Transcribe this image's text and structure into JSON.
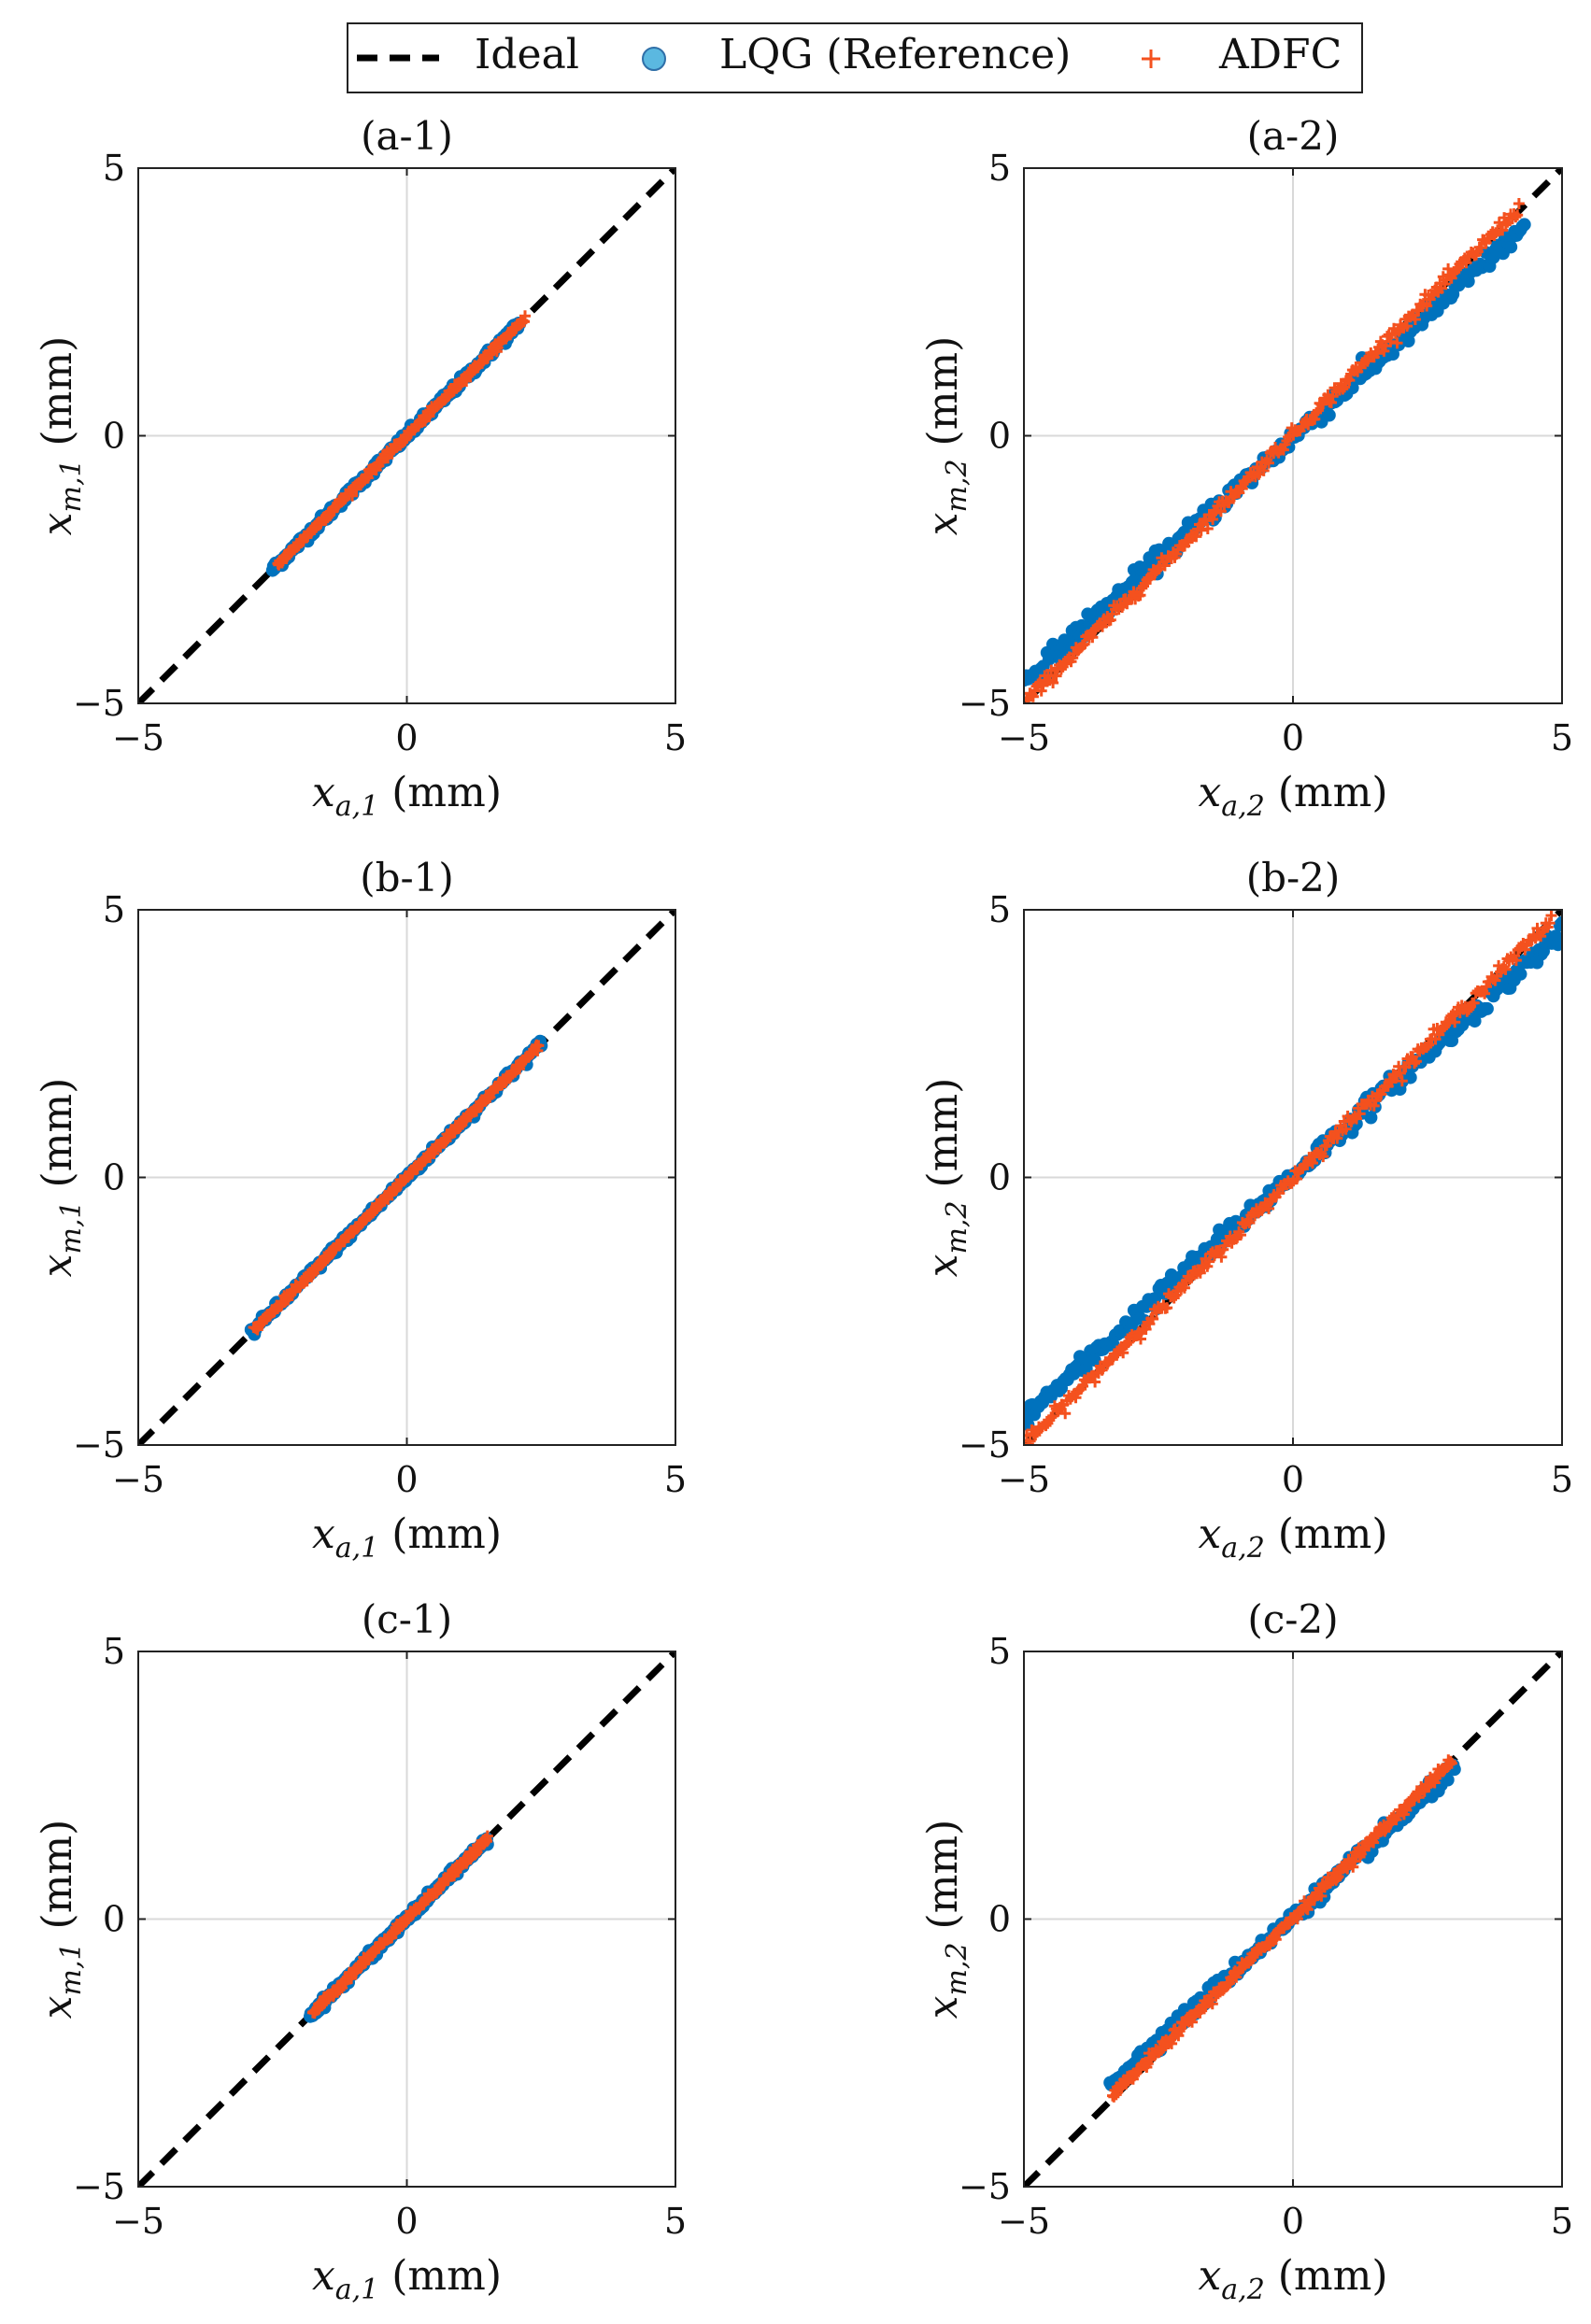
{
  "colors": {
    "ideal": "#000000",
    "lqg": "#0072BD",
    "lqg_marker_fill": "#5BB8E0",
    "adfc": "#F4511E",
    "grid": "#d9d9d9",
    "axes": "#222222"
  },
  "legend": {
    "entries": [
      {
        "label": "Ideal",
        "series": "ideal"
      },
      {
        "label": "LQG (Reference)",
        "series": "lqg"
      },
      {
        "label": "ADFC",
        "series": "adfc"
      }
    ]
  },
  "chart_data": [
    {
      "type": "scatter",
      "title": "(a-1)",
      "xlabel": "x_{a,1} (mm)",
      "ylabel": "x_{m,1} (mm)",
      "xlabel_parts": {
        "base": "x",
        "sub": "a,1",
        "unit": "(mm)"
      },
      "ylabel_parts": {
        "base": "x",
        "sub": "m,1",
        "unit": "(mm)"
      },
      "xlim": [
        -5,
        5
      ],
      "ylim": [
        -5,
        5
      ],
      "xticks": [
        -5,
        0,
        5
      ],
      "yticks": [
        -5,
        0,
        5
      ],
      "tick_labels": [
        "−5",
        "0",
        "5"
      ],
      "grid": true,
      "series": [
        {
          "name": "Ideal",
          "style": "dashed-line",
          "x": [
            -5,
            5
          ],
          "y": [
            -5,
            5
          ]
        },
        {
          "name": "LQG (Reference)",
          "style": "circle",
          "x": [
            -2.5,
            2.1
          ],
          "y": [
            -2.5,
            2.1
          ],
          "spread": 0.08
        },
        {
          "name": "ADFC",
          "style": "plus",
          "x": [
            -2.4,
            2.2
          ],
          "y": [
            -2.4,
            2.2
          ],
          "spread": 0.05
        }
      ]
    },
    {
      "type": "scatter",
      "title": "(a-2)",
      "xlabel": "x_{a,2} (mm)",
      "ylabel": "x_{m,2} (mm)",
      "xlabel_parts": {
        "base": "x",
        "sub": "a,2",
        "unit": "(mm)"
      },
      "ylabel_parts": {
        "base": "x",
        "sub": "m,2",
        "unit": "(mm)"
      },
      "xlim": [
        -5,
        5
      ],
      "ylim": [
        -5,
        5
      ],
      "xticks": [
        -5,
        0,
        5
      ],
      "yticks": [
        -5,
        0,
        5
      ],
      "tick_labels": [
        "−5",
        "0",
        "5"
      ],
      "grid": true,
      "series": [
        {
          "name": "Ideal",
          "style": "dashed-line",
          "x": [
            -5,
            5
          ],
          "y": [
            -5,
            5
          ]
        },
        {
          "name": "LQG (Reference)",
          "style": "circle",
          "x": [
            -5.0,
            4.3
          ],
          "y": [
            -4.6,
            3.9
          ],
          "spread": 0.16
        },
        {
          "name": "ADFC",
          "style": "plus",
          "x": [
            -4.95,
            4.2
          ],
          "y": [
            -4.95,
            4.25
          ],
          "spread": 0.1
        }
      ]
    },
    {
      "type": "scatter",
      "title": "(b-1)",
      "xlabel": "x_{a,1} (mm)",
      "ylabel": "x_{m,1} (mm)",
      "xlabel_parts": {
        "base": "x",
        "sub": "a,1",
        "unit": "(mm)"
      },
      "ylabel_parts": {
        "base": "x",
        "sub": "m,1",
        "unit": "(mm)"
      },
      "xlim": [
        -5,
        5
      ],
      "ylim": [
        -5,
        5
      ],
      "xticks": [
        -5,
        0,
        5
      ],
      "yticks": [
        -5,
        0,
        5
      ],
      "tick_labels": [
        "−5",
        "0",
        "5"
      ],
      "grid": true,
      "series": [
        {
          "name": "Ideal",
          "style": "dashed-line",
          "x": [
            -5,
            5
          ],
          "y": [
            -5,
            5
          ]
        },
        {
          "name": "LQG (Reference)",
          "style": "circle",
          "x": [
            -2.9,
            2.5
          ],
          "y": [
            -2.9,
            2.5
          ],
          "spread": 0.07
        },
        {
          "name": "ADFC",
          "style": "plus",
          "x": [
            -2.85,
            2.45
          ],
          "y": [
            -2.85,
            2.45
          ],
          "spread": 0.05
        }
      ]
    },
    {
      "type": "scatter",
      "title": "(b-2)",
      "xlabel": "x_{a,2} (mm)",
      "ylabel": "x_{m,2} (mm)",
      "xlabel_parts": {
        "base": "x",
        "sub": "a,2",
        "unit": "(mm)"
      },
      "ylabel_parts": {
        "base": "x",
        "sub": "m,2",
        "unit": "(mm)"
      },
      "xlim": [
        -5,
        5
      ],
      "ylim": [
        -5,
        5
      ],
      "xticks": [
        -5,
        0,
        5
      ],
      "yticks": [
        -5,
        0,
        5
      ],
      "tick_labels": [
        "−5",
        "0",
        "5"
      ],
      "grid": true,
      "series": [
        {
          "name": "Ideal",
          "style": "dashed-line",
          "x": [
            -5,
            5
          ],
          "y": [
            -5,
            5
          ]
        },
        {
          "name": "LQG (Reference)",
          "style": "circle",
          "x": [
            -5.0,
            5.0
          ],
          "y": [
            -4.5,
            4.6
          ],
          "spread": 0.16
        },
        {
          "name": "ADFC",
          "style": "plus",
          "x": [
            -4.95,
            4.8
          ],
          "y": [
            -4.95,
            4.8
          ],
          "spread": 0.1
        }
      ]
    },
    {
      "type": "scatter",
      "title": "(c-1)",
      "xlabel": "x_{a,1} (mm)",
      "ylabel": "x_{m,1} (mm)",
      "xlabel_parts": {
        "base": "x",
        "sub": "a,1",
        "unit": "(mm)"
      },
      "ylabel_parts": {
        "base": "x",
        "sub": "m,1",
        "unit": "(mm)"
      },
      "xlim": [
        -5,
        5
      ],
      "ylim": [
        -5,
        5
      ],
      "xticks": [
        -5,
        0,
        5
      ],
      "yticks": [
        -5,
        0,
        5
      ],
      "tick_labels": [
        "−5",
        "0",
        "5"
      ],
      "grid": true,
      "series": [
        {
          "name": "Ideal",
          "style": "dashed-line",
          "x": [
            -5,
            5
          ],
          "y": [
            -5,
            5
          ]
        },
        {
          "name": "LQG (Reference)",
          "style": "circle",
          "x": [
            -1.8,
            1.5
          ],
          "y": [
            -1.8,
            1.5
          ],
          "spread": 0.07
        },
        {
          "name": "ADFC",
          "style": "plus",
          "x": [
            -1.75,
            1.5
          ],
          "y": [
            -1.75,
            1.5
          ],
          "spread": 0.05
        }
      ]
    },
    {
      "type": "scatter",
      "title": "(c-2)",
      "xlabel": "x_{a,2} (mm)",
      "ylabel": "x_{m,2} (mm)",
      "xlabel_parts": {
        "base": "x",
        "sub": "a,2",
        "unit": "(mm)"
      },
      "ylabel_parts": {
        "base": "x",
        "sub": "m,2",
        "unit": "(mm)"
      },
      "xlim": [
        -5,
        5
      ],
      "ylim": [
        -5,
        5
      ],
      "xticks": [
        -5,
        0,
        5
      ],
      "yticks": [
        -5,
        0,
        5
      ],
      "tick_labels": [
        "−5",
        "0",
        "5"
      ],
      "grid": true,
      "series": [
        {
          "name": "Ideal",
          "style": "dashed-line",
          "x": [
            -5,
            5
          ],
          "y": [
            -5,
            5
          ]
        },
        {
          "name": "LQG (Reference)",
          "style": "circle",
          "x": [
            -3.4,
            3.0
          ],
          "y": [
            -3.1,
            2.8
          ],
          "spread": 0.12
        },
        {
          "name": "ADFC",
          "style": "plus",
          "x": [
            -3.35,
            2.95
          ],
          "y": [
            -3.3,
            2.95
          ],
          "spread": 0.08
        }
      ]
    }
  ]
}
